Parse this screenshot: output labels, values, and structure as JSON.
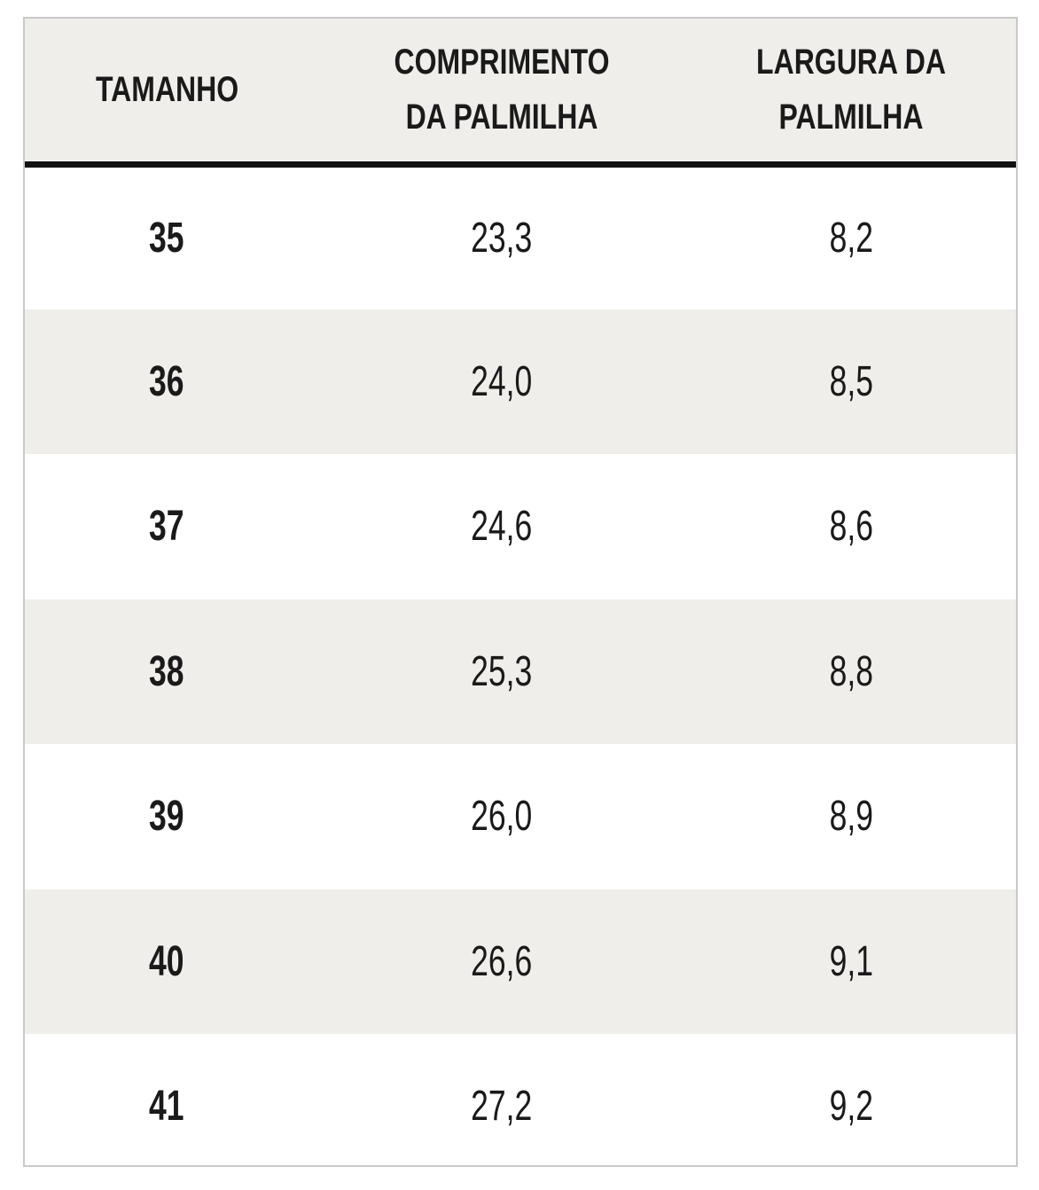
{
  "table": {
    "header": [
      "TAMANHO",
      "COMPRIMENTO DA PALMILHA",
      "LARGURA DA PALMILHA"
    ],
    "rows": [
      [
        "35",
        "23,3",
        "8,2"
      ],
      [
        "36",
        "24,0",
        "8,5"
      ],
      [
        "37",
        "24,6",
        "8,6"
      ],
      [
        "38",
        "25,3",
        "8,8"
      ],
      [
        "39",
        "26,0",
        "8,9"
      ],
      [
        "40",
        "26,6",
        "9,1"
      ],
      [
        "41",
        "27,2",
        "9,2"
      ]
    ]
  }
}
